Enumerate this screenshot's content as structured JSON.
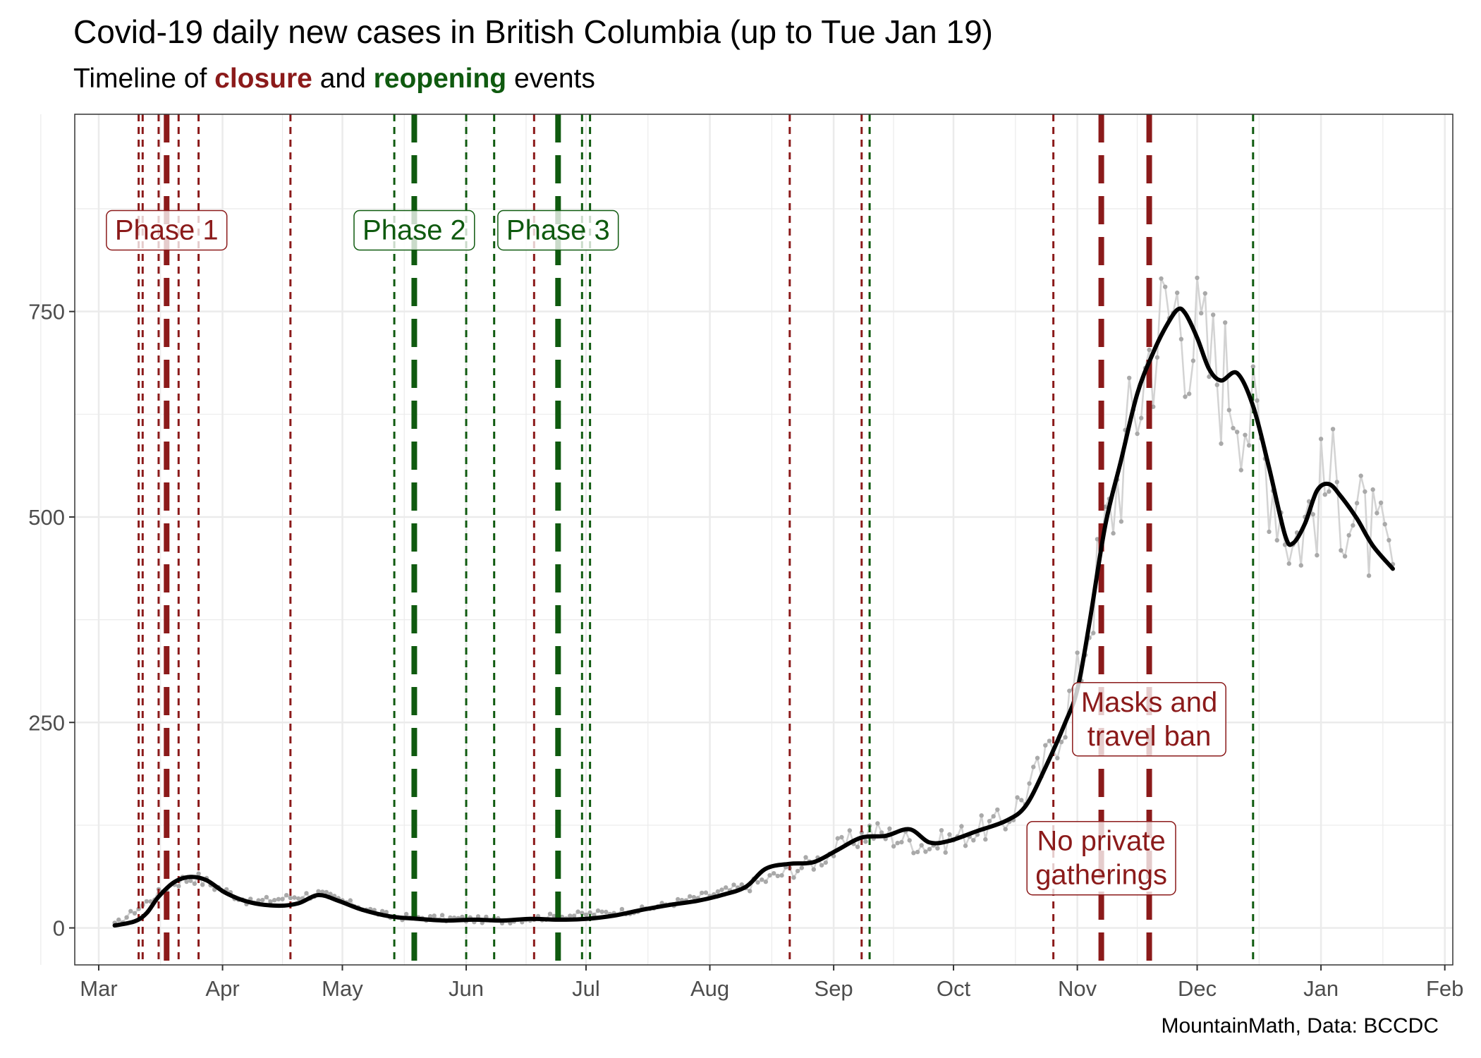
{
  "title": "Covid-19 daily new cases in British Columbia (up to Tue Jan 19)",
  "subtitle": {
    "prefix": "Timeline of ",
    "closure_word": "closure",
    "middle": " and ",
    "reopening_word": "reopening",
    "suffix": " events"
  },
  "caption": "MountainMath, Data: BCCDC",
  "colors": {
    "closure": "#8B1A1A",
    "reopening": "#0F5A0F",
    "trend": "#000000",
    "daily_points": "#A9A9A9",
    "daily_line": "#D3D3D3",
    "grid": "#EBEBEB"
  },
  "chart_data": {
    "type": "line",
    "x_axis": {
      "range": [
        "2020-02-24",
        "2021-02-03"
      ],
      "ticks": [
        {
          "date": "2020-03-01",
          "label": "Mar"
        },
        {
          "date": "2020-04-01",
          "label": "Apr"
        },
        {
          "date": "2020-05-01",
          "label": "May"
        },
        {
          "date": "2020-06-01",
          "label": "Jun"
        },
        {
          "date": "2020-07-01",
          "label": "Jul"
        },
        {
          "date": "2020-08-01",
          "label": "Aug"
        },
        {
          "date": "2020-09-01",
          "label": "Sep"
        },
        {
          "date": "2020-10-01",
          "label": "Oct"
        },
        {
          "date": "2020-11-01",
          "label": "Nov"
        },
        {
          "date": "2020-12-01",
          "label": "Dec"
        },
        {
          "date": "2021-01-01",
          "label": "Jan"
        },
        {
          "date": "2021-02-01",
          "label": "Feb"
        }
      ]
    },
    "y_axis": {
      "range": [
        -45,
        990
      ],
      "ticks": [
        0,
        250,
        500,
        750
      ],
      "minor_ticks": [
        125,
        375,
        625,
        875
      ]
    },
    "grid": true,
    "legend": "none",
    "trend_series": [
      [
        "2020-03-05",
        3
      ],
      [
        "2020-03-10",
        8
      ],
      [
        "2020-03-13",
        18
      ],
      [
        "2020-03-16",
        38
      ],
      [
        "2020-03-20",
        56
      ],
      [
        "2020-03-24",
        62
      ],
      [
        "2020-03-28",
        58
      ],
      [
        "2020-04-02",
        42
      ],
      [
        "2020-04-08",
        31
      ],
      [
        "2020-04-15",
        27
      ],
      [
        "2020-04-20",
        30
      ],
      [
        "2020-04-25",
        40
      ],
      [
        "2020-04-30",
        33
      ],
      [
        "2020-05-06",
        22
      ],
      [
        "2020-05-13",
        14
      ],
      [
        "2020-05-20",
        11
      ],
      [
        "2020-05-27",
        9
      ],
      [
        "2020-06-03",
        10
      ],
      [
        "2020-06-10",
        9
      ],
      [
        "2020-06-17",
        11
      ],
      [
        "2020-06-24",
        10
      ],
      [
        "2020-07-01",
        11
      ],
      [
        "2020-07-08",
        15
      ],
      [
        "2020-07-15",
        22
      ],
      [
        "2020-07-22",
        28
      ],
      [
        "2020-07-29",
        33
      ],
      [
        "2020-08-04",
        40
      ],
      [
        "2020-08-10",
        50
      ],
      [
        "2020-08-15",
        72
      ],
      [
        "2020-08-21",
        78
      ],
      [
        "2020-08-27",
        80
      ],
      [
        "2020-09-02",
        95
      ],
      [
        "2020-09-08",
        110
      ],
      [
        "2020-09-14",
        112
      ],
      [
        "2020-09-20",
        120
      ],
      [
        "2020-09-25",
        104
      ],
      [
        "2020-09-30",
        106
      ],
      [
        "2020-10-07",
        118
      ],
      [
        "2020-10-14",
        130
      ],
      [
        "2020-10-19",
        148
      ],
      [
        "2020-10-24",
        195
      ],
      [
        "2020-10-29",
        250
      ],
      [
        "2020-11-01",
        290
      ],
      [
        "2020-11-04",
        370
      ],
      [
        "2020-11-08",
        490
      ],
      [
        "2020-11-12",
        570
      ],
      [
        "2020-11-16",
        650
      ],
      [
        "2020-11-20",
        700
      ],
      [
        "2020-11-23",
        730
      ],
      [
        "2020-11-26",
        752
      ],
      [
        "2020-11-28",
        748
      ],
      [
        "2020-12-01",
        718
      ],
      [
        "2020-12-04",
        680
      ],
      [
        "2020-12-07",
        666
      ],
      [
        "2020-12-11",
        675
      ],
      [
        "2020-12-15",
        635
      ],
      [
        "2020-12-19",
        560
      ],
      [
        "2020-12-23",
        478
      ],
      [
        "2020-12-25",
        468
      ],
      [
        "2020-12-28",
        492
      ],
      [
        "2020-12-31",
        532
      ],
      [
        "2021-01-03",
        540
      ],
      [
        "2021-01-06",
        525
      ],
      [
        "2021-01-10",
        498
      ],
      [
        "2021-01-14",
        465
      ],
      [
        "2021-01-19",
        437
      ]
    ],
    "daily_anchors": [
      [
        "2020-03-05",
        3
      ],
      [
        "2020-03-20",
        56
      ],
      [
        "2020-03-25",
        62
      ],
      [
        "2020-04-08",
        31
      ],
      [
        "2020-04-25",
        42
      ],
      [
        "2020-05-13",
        14
      ],
      [
        "2020-06-10",
        9
      ],
      [
        "2020-07-15",
        22
      ],
      [
        "2020-08-10",
        50
      ],
      [
        "2020-08-27",
        80
      ],
      [
        "2020-09-10",
        118
      ],
      [
        "2020-09-25",
        100
      ],
      [
        "2020-10-14",
        130
      ],
      [
        "2020-10-24",
        200
      ],
      [
        "2020-11-01",
        300
      ],
      [
        "2020-11-08",
        480
      ],
      [
        "2020-11-20",
        720
      ],
      [
        "2020-11-26",
        760
      ],
      [
        "2020-12-04",
        690
      ],
      [
        "2020-12-11",
        660
      ],
      [
        "2020-12-19",
        560
      ],
      [
        "2020-12-25",
        470
      ],
      [
        "2021-01-03",
        545
      ],
      [
        "2021-01-10",
        500
      ],
      [
        "2021-01-19",
        440
      ]
    ],
    "events": [
      {
        "date": "2020-03-11",
        "type": "closure",
        "major": false
      },
      {
        "date": "2020-03-12",
        "type": "closure",
        "major": false
      },
      {
        "date": "2020-03-16",
        "type": "closure",
        "major": false
      },
      {
        "date": "2020-03-18",
        "type": "closure",
        "major": true
      },
      {
        "date": "2020-03-21",
        "type": "closure",
        "major": false
      },
      {
        "date": "2020-03-26",
        "type": "closure",
        "major": false
      },
      {
        "date": "2020-04-18",
        "type": "closure",
        "major": false
      },
      {
        "date": "2020-05-14",
        "type": "reopening",
        "major": false
      },
      {
        "date": "2020-05-19",
        "type": "reopening",
        "major": true
      },
      {
        "date": "2020-06-01",
        "type": "reopening",
        "major": false
      },
      {
        "date": "2020-06-08",
        "type": "reopening",
        "major": false
      },
      {
        "date": "2020-06-18",
        "type": "closure",
        "major": false
      },
      {
        "date": "2020-06-24",
        "type": "reopening",
        "major": true
      },
      {
        "date": "2020-06-30",
        "type": "reopening",
        "major": false
      },
      {
        "date": "2020-07-02",
        "type": "reopening",
        "major": false
      },
      {
        "date": "2020-08-21",
        "type": "closure",
        "major": false
      },
      {
        "date": "2020-09-08",
        "type": "closure",
        "major": false
      },
      {
        "date": "2020-09-10",
        "type": "reopening",
        "major": false
      },
      {
        "date": "2020-10-26",
        "type": "closure",
        "major": false
      },
      {
        "date": "2020-11-07",
        "type": "closure",
        "major": true
      },
      {
        "date": "2020-11-19",
        "type": "closure",
        "major": true
      },
      {
        "date": "2020-12-15",
        "type": "reopening",
        "major": false
      }
    ],
    "annotations": [
      {
        "label": "Phase 1",
        "date": "2020-03-18",
        "y": 848,
        "type": "closure"
      },
      {
        "label": "Phase 2",
        "date": "2020-05-19",
        "y": 848,
        "type": "reopening"
      },
      {
        "label": "Phase 3",
        "date": "2020-06-24",
        "y": 848,
        "type": "reopening"
      },
      {
        "label": "Masks and\ntravel ban",
        "date": "2020-11-19",
        "y": 253,
        "type": "closure"
      },
      {
        "label": "No private\ngatherings",
        "date": "2020-11-07",
        "y": 84,
        "type": "closure"
      }
    ]
  }
}
